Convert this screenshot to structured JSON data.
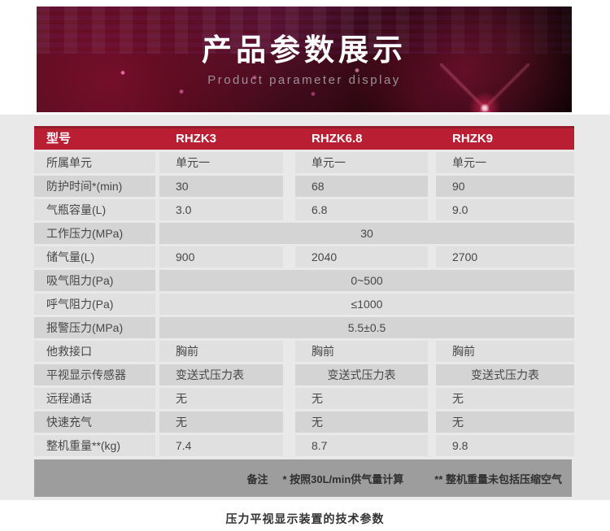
{
  "banner": {
    "title": "产品参数展示",
    "subtitle": "Product parameter display"
  },
  "table": {
    "header": {
      "label": "型号",
      "models": [
        "RHZK3",
        "RHZK6.8",
        "RHZK9"
      ]
    },
    "rows": [
      {
        "label": "所属单元",
        "values": [
          "单元一",
          "单元一",
          "单元一"
        ]
      },
      {
        "label": "防护时间*(min)",
        "values": [
          "30",
          "68",
          "90"
        ]
      },
      {
        "label": "气瓶容量(L)",
        "values": [
          "3.0",
          "6.8",
          "9.0"
        ]
      },
      {
        "label": "工作压力(MPa)",
        "merged": "30"
      },
      {
        "label": "储气量(L)",
        "values": [
          "900",
          "2040",
          "2700"
        ]
      },
      {
        "label": "吸气阻力(Pa)",
        "merged": "0~500"
      },
      {
        "label": "呼气阻力(Pa)",
        "merged": "≤1000"
      },
      {
        "label": "报警压力(MPa)",
        "merged": "5.5±0.5"
      },
      {
        "label": "他救接口",
        "values": [
          "胸前",
          "胸前",
          "胸前"
        ]
      },
      {
        "label": "平视显示传感器",
        "values": [
          "变送式压力表",
          "变送式压力表",
          "变送式压力表"
        ]
      },
      {
        "label": "远程通话",
        "values": [
          "无",
          "无",
          "无"
        ]
      },
      {
        "label": "快速充气",
        "values": [
          "无",
          "无",
          "无"
        ]
      },
      {
        "label": "整机重量**(kg)",
        "values": [
          "7.4",
          "8.7",
          "9.8"
        ]
      }
    ]
  },
  "notes": {
    "prefix": "备注",
    "note_1": "* 按照30L/min供气量计算",
    "note_2": "** 整机重量未包括压缩空气"
  },
  "caption": "压力平视显示装置的技术参数",
  "colors": {
    "header_red": "#b91e32",
    "header_red_dark": "#951a2a",
    "row_light": "#e0e0e0",
    "row_dark": "#d4d4d4",
    "notes_bar_gray": "#9d9d9d",
    "section_bg": "#e9e9e9",
    "banner_bg_dark": "#32070f"
  }
}
